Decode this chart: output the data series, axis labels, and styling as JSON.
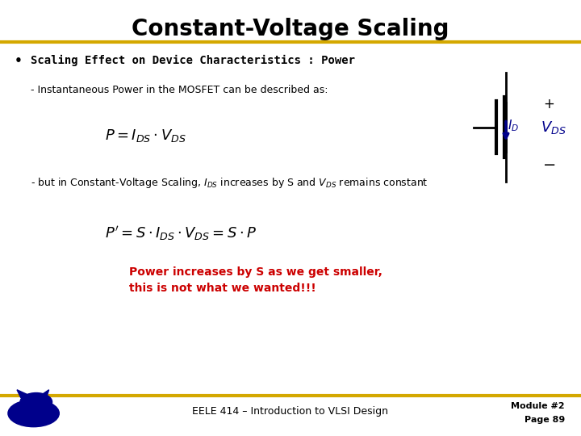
{
  "title": "Constant-Voltage Scaling",
  "title_fontsize": 20,
  "title_fontweight": "bold",
  "bg_color": "#ffffff",
  "gold_color": "#D4A800",
  "bullet_text": "Scaling Effect on Device Characteristics : Power",
  "line1": "- Instantaneous Power in the MOSFET can be described as:",
  "formula1": "$P = I_{DS} \\cdot V_{DS}$",
  "formula2": "$P^{\\prime}= S \\cdot I_{DS} \\cdot V_{DS} = S \\cdot P$",
  "warning_line1": "Power increases by S as we get smaller,",
  "warning_line2": "this is not what we wanted!!!",
  "warning_color": "#CC0000",
  "footer_text": "EELE 414 – Introduction to VLSI Design",
  "module_text": "Module #2",
  "page_text": "Page 89",
  "dark_blue": "#00008B",
  "text_color": "#000000"
}
